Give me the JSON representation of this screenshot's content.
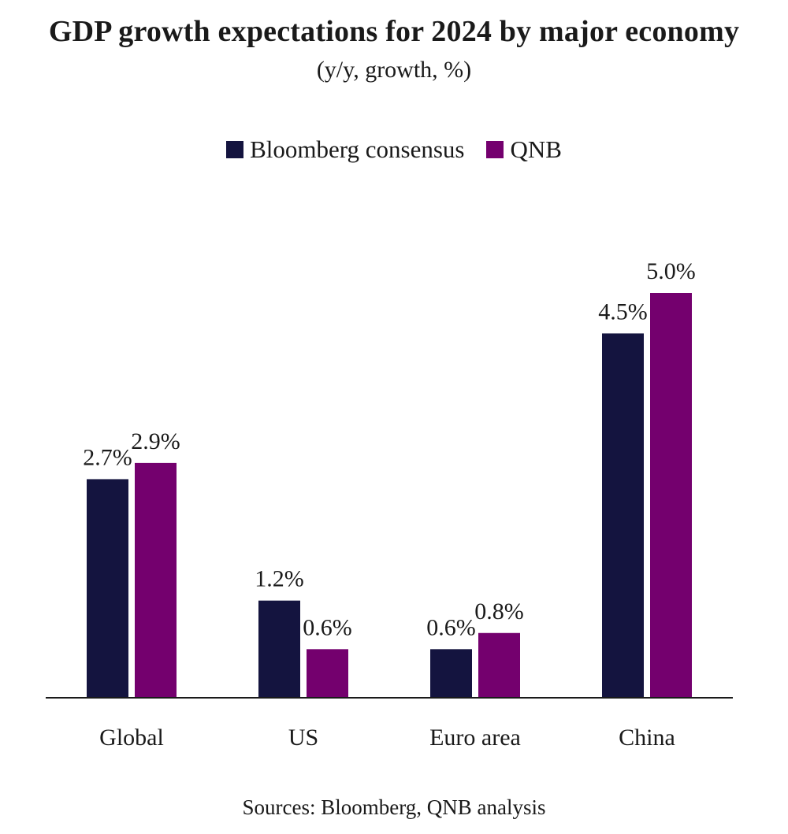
{
  "chart_data": {
    "type": "bar",
    "title": "GDP growth expectations for 2024 by major economy",
    "subtitle": "(y/y, growth, %)",
    "categories": [
      "Global",
      "US",
      "Euro area",
      "China"
    ],
    "series": [
      {
        "name": "Bloomberg consensus",
        "values": [
          2.7,
          1.2,
          0.6,
          4.5
        ],
        "labels": [
          "2.7%",
          "1.2%",
          "0.6%",
          "4.5%"
        ],
        "color": "#14143f"
      },
      {
        "name": "QNB",
        "values": [
          2.9,
          0.6,
          0.8,
          5.0
        ],
        "labels": [
          "2.9%",
          "0.6%",
          "0.8%",
          "5.0%"
        ],
        "color": "#74006e"
      }
    ],
    "ylim": [
      0,
      5.0
    ],
    "grid": false,
    "legend_position": "top-center",
    "source": "Sources: Bloomberg, QNB analysis"
  }
}
